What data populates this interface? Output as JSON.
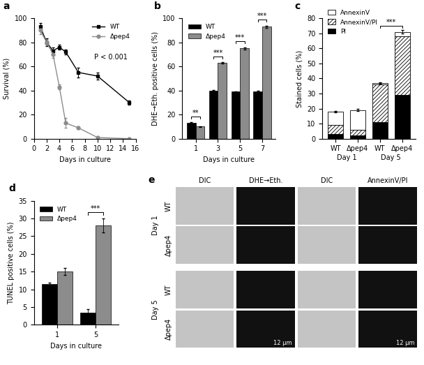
{
  "chart_data": [
    {
      "type": "line",
      "panel": "a",
      "xlabel": "Days in culture",
      "ylabel": "Survival (%)",
      "xlim": [
        0,
        16
      ],
      "xticks": [
        0,
        2,
        4,
        6,
        8,
        10,
        12,
        14,
        16
      ],
      "ylim": [
        0,
        100
      ],
      "yticks": [
        0,
        20,
        40,
        60,
        80,
        100
      ],
      "legend": "upper right",
      "annotation": {
        "text": "P < 0.001",
        "x": 9.5,
        "y": 66
      },
      "series": [
        {
          "name": "WT",
          "color": "#000000",
          "marker": "square",
          "x": [
            1,
            2,
            3,
            4,
            5,
            7,
            10,
            15
          ],
          "values": [
            93,
            80,
            73,
            76,
            72,
            55,
            52,
            30
          ],
          "errors": [
            3,
            3,
            3,
            2,
            2,
            4,
            3,
            2
          ]
        },
        {
          "name": "Δpep4",
          "color": "#8c8c8c",
          "marker": "circle",
          "x": [
            1,
            2,
            3,
            4,
            5,
            7,
            10,
            15
          ],
          "values": [
            90,
            80,
            70,
            43,
            13,
            9,
            1,
            0
          ],
          "errors": [
            3,
            2,
            3,
            2,
            4,
            1,
            0.5,
            0.3
          ]
        }
      ]
    },
    {
      "type": "bar",
      "panel": "b",
      "xlabel": "Days in culture",
      "ylabel": "DHE→Eth. positive cells (%)",
      "categories": [
        "1",
        "3",
        "5",
        "7"
      ],
      "ylim": [
        0,
        100
      ],
      "yticks": [
        0,
        20,
        40,
        60,
        80,
        100
      ],
      "legend": "upper left",
      "significance": [
        {
          "category": 0,
          "label": "**"
        },
        {
          "category": 1,
          "label": "***"
        },
        {
          "category": 2,
          "label": "***"
        },
        {
          "category": 3,
          "label": "***"
        }
      ],
      "series": [
        {
          "name": "WT",
          "color": "#000000",
          "values": [
            13,
            40,
            39,
            39
          ],
          "errors": [
            0.5,
            0.5,
            0.5,
            1
          ]
        },
        {
          "name": "Δpep4",
          "color": "#8c8c8c",
          "values": [
            10,
            63,
            75,
            93
          ],
          "errors": [
            0.5,
            0.5,
            1,
            1
          ]
        }
      ]
    },
    {
      "type": "bar",
      "stacked": true,
      "panel": "c",
      "ylabel": "Stained cells (%)",
      "categories": [
        "WT",
        "Δpep4",
        "WT",
        "Δpep4"
      ],
      "group_labels": [
        "Day 1",
        "Day 5"
      ],
      "ylim": [
        0,
        80
      ],
      "yticks": [
        0,
        10,
        20,
        30,
        40,
        50,
        60,
        70,
        80
      ],
      "legend": "upper left",
      "significance": [
        {
          "between": [
            2,
            3
          ],
          "label": "***"
        }
      ],
      "series": [
        {
          "name": "PI",
          "color": "#000000",
          "values": [
            3,
            2,
            11,
            29
          ]
        },
        {
          "name": "AnnexinV/PI",
          "color": "#ffffff",
          "values": [
            6,
            4,
            25,
            39
          ]
        },
        {
          "name": "AnnexinV",
          "color": "#ffffff",
          "values": [
            9,
            13,
            1,
            3
          ],
          "errors": [
            0.5,
            0.8,
            0.6,
            1.0
          ]
        }
      ]
    },
    {
      "type": "bar",
      "panel": "d",
      "xlabel": "Days in culture",
      "ylabel": "TUNEL positive cells (%)",
      "categories": [
        "1",
        "5"
      ],
      "ylim": [
        0,
        35
      ],
      "yticks": [
        0,
        5,
        10,
        15,
        20,
        25,
        30,
        35
      ],
      "legend": "upper left",
      "significance": [
        {
          "category": 1,
          "label": "***"
        }
      ],
      "series": [
        {
          "name": "WT",
          "color": "#000000",
          "values": [
            11.5,
            3.5
          ],
          "errors": [
            0.5,
            1
          ]
        },
        {
          "name": "Δpep4",
          "color": "#8c8c8c",
          "values": [
            15,
            28
          ],
          "errors": [
            1,
            2
          ]
        }
      ]
    }
  ],
  "panel_e": {
    "panel": "e",
    "columns": [
      "DIC",
      "DHE→Eth.",
      "DIC",
      "AnnexinV/PI"
    ],
    "days": [
      {
        "label": "Day 1",
        "rows": [
          "WT",
          "Δpep4"
        ]
      },
      {
        "label": "Day 5",
        "rows": [
          "WT",
          "Δpep4"
        ]
      }
    ],
    "scale_bar": "12 μm"
  }
}
